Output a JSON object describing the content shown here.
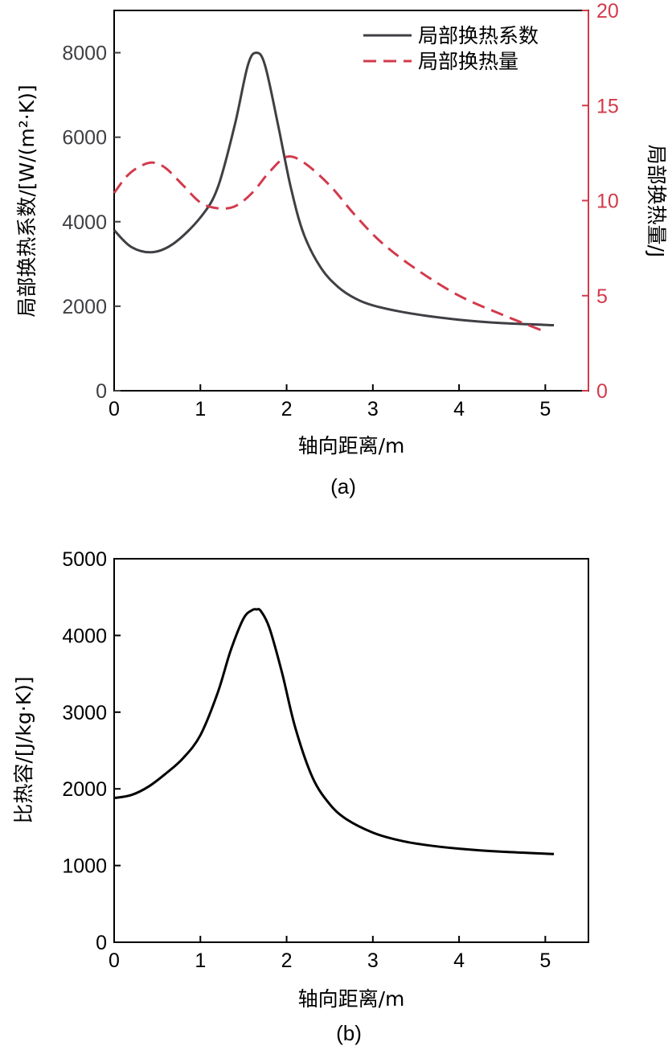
{
  "colors": {
    "dark": "#3f3f44",
    "red": "#d23a4b",
    "black": "#000000"
  },
  "chart_data": [
    {
      "type": "line",
      "caption": "(a)",
      "xlabel": "轴向距离/m",
      "ylabel": "局部换热系数/[W/(m²·K)]",
      "y2label": "局部换热量/J",
      "xlim": [
        0,
        5.5
      ],
      "ylim": [
        0,
        9000
      ],
      "y2lim": [
        0,
        20
      ],
      "xticks": [
        0,
        1,
        2,
        3,
        4,
        5
      ],
      "yticks": [
        0,
        2000,
        4000,
        6000,
        8000
      ],
      "y2ticks": [
        0,
        5,
        10,
        15,
        20
      ],
      "legend_position": "top-right",
      "series": [
        {
          "name": "局部换热系数",
          "axis": "left",
          "style": "solid",
          "x": [
            0,
            0.2,
            0.45,
            0.7,
            1.0,
            1.2,
            1.4,
            1.55,
            1.65,
            1.75,
            1.9,
            2.05,
            2.2,
            2.4,
            2.6,
            2.8,
            3.0,
            3.3,
            3.6,
            4.0,
            4.5,
            5.1
          ],
          "y": [
            3800,
            3400,
            3280,
            3500,
            4100,
            4800,
            6300,
            7700,
            8000,
            7700,
            6300,
            4800,
            3700,
            2900,
            2450,
            2180,
            2020,
            1880,
            1780,
            1680,
            1600,
            1550
          ]
        },
        {
          "name": "局部换热量",
          "axis": "right",
          "style": "dashed",
          "x": [
            0,
            0.15,
            0.3,
            0.45,
            0.6,
            0.8,
            1.0,
            1.2,
            1.4,
            1.6,
            1.8,
            2.0,
            2.2,
            2.5,
            2.8,
            3.1,
            3.5,
            4.0,
            4.5,
            5.0
          ],
          "y": [
            10.4,
            11.3,
            11.8,
            12.0,
            11.7,
            10.8,
            9.9,
            9.6,
            9.7,
            10.4,
            11.5,
            12.3,
            12.0,
            10.8,
            9.2,
            7.8,
            6.4,
            5.0,
            4.0,
            3.1
          ]
        }
      ]
    },
    {
      "type": "line",
      "caption": "(b)",
      "xlabel": "轴向距离/m",
      "ylabel": "比热容/[J/kg·K)]",
      "xlim": [
        0,
        5.5
      ],
      "ylim": [
        0,
        5000
      ],
      "xticks": [
        0,
        1,
        2,
        3,
        4,
        5
      ],
      "yticks": [
        0,
        1000,
        2000,
        3000,
        4000,
        5000
      ],
      "series": [
        {
          "name": "比热容",
          "style": "solid",
          "x": [
            0,
            0.2,
            0.4,
            0.6,
            0.8,
            1.0,
            1.2,
            1.35,
            1.5,
            1.6,
            1.65,
            1.7,
            1.8,
            1.95,
            2.1,
            2.3,
            2.5,
            2.7,
            3.0,
            3.3,
            3.6,
            4.0,
            4.5,
            5.1
          ],
          "y": [
            1880,
            1920,
            2030,
            2200,
            2400,
            2700,
            3250,
            3800,
            4220,
            4330,
            4340,
            4320,
            4100,
            3500,
            2800,
            2150,
            1800,
            1600,
            1430,
            1330,
            1270,
            1220,
            1180,
            1150
          ]
        }
      ]
    }
  ]
}
